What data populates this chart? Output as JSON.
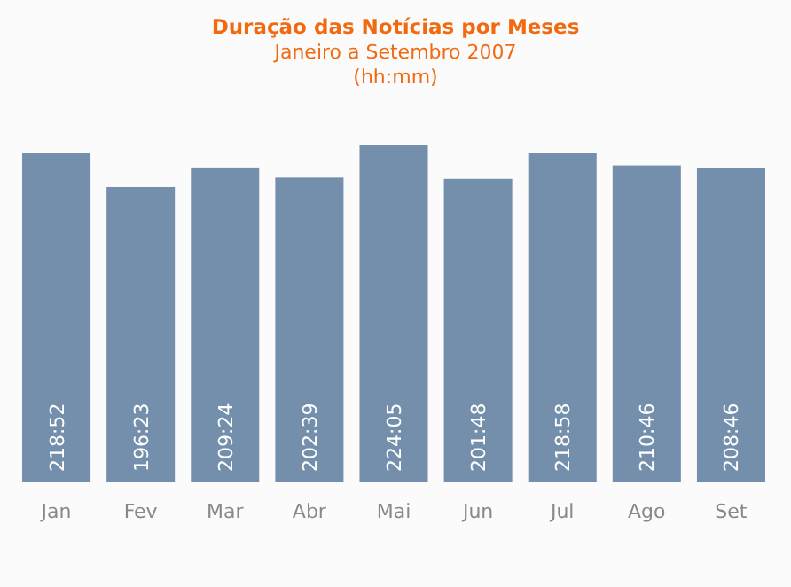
{
  "chart_data": {
    "type": "bar",
    "title": "Duração das Notícias por Meses",
    "subtitle": "Janeiro a Setembro 2007",
    "ylabel": "(hh:mm)",
    "categories": [
      "Jan",
      "Fev",
      "Mar",
      "Abr",
      "Mai",
      "Jun",
      "Jul",
      "Ago",
      "Set"
    ],
    "values": [
      218.867,
      196.383,
      209.4,
      202.65,
      224.083,
      201.8,
      218.967,
      210.767,
      208.767
    ],
    "value_labels": [
      "218:52",
      "196:23",
      "209:24",
      "202:39",
      "224:05",
      "201:48",
      "218:58",
      "210:46",
      "208:46"
    ],
    "color": "#748fab"
  }
}
